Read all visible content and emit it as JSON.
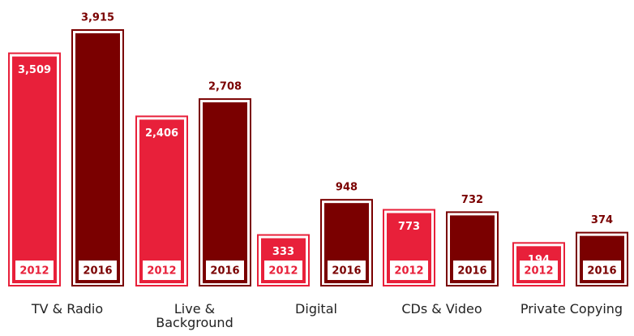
{
  "chart_data": {
    "type": "bar",
    "categories": [
      "TV & Radio",
      "Live & Background",
      "Digital",
      "CDs & Video",
      "Private Copying"
    ],
    "series": [
      {
        "name": "2012",
        "color": "#e8203a",
        "values": [
          3509,
          2406,
          333,
          773,
          194
        ],
        "value_labels": [
          "3,509",
          "2,406",
          "333",
          "773",
          "194"
        ]
      },
      {
        "name": "2016",
        "color": "#7a0000",
        "values": [
          3915,
          2708,
          948,
          732,
          374
        ],
        "value_labels": [
          "3,915",
          "2,708",
          "948",
          "732",
          "374"
        ]
      }
    ]
  }
}
